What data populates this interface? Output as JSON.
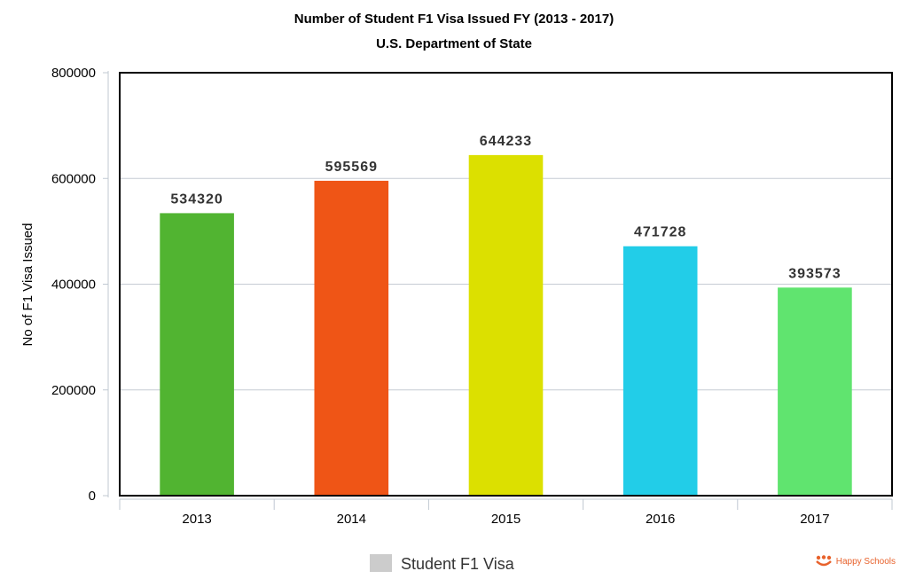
{
  "chart_data": {
    "type": "bar",
    "title": "Number of Student F1 Visa Issued FY (2013 - 2017)",
    "subtitle": "U.S. Department of State",
    "ylabel": "No of F1 Visa Issued",
    "xlabel": "",
    "categories": [
      "2013",
      "2014",
      "2015",
      "2016",
      "2017"
    ],
    "values": [
      534320,
      595569,
      644233,
      471728,
      393573
    ],
    "data_labels": [
      "534320",
      "595569",
      "644233",
      "471728",
      "393573"
    ],
    "bar_colors": [
      "#51b431",
      "#ef5516",
      "#dce000",
      "#22cde8",
      "#60e46f"
    ],
    "ylim": [
      0,
      800000
    ],
    "yticks": [
      0,
      200000,
      400000,
      600000,
      800000
    ],
    "ytick_labels": [
      "0",
      "200000",
      "400000",
      "600000",
      "800000"
    ],
    "grid": true,
    "legend": {
      "position": "bottom-center",
      "label": "Student F1 Visa",
      "swatch_color": "#cccccc"
    }
  },
  "branding": {
    "logo_text": "Happy Schools",
    "logo_color": "#e8622c"
  }
}
